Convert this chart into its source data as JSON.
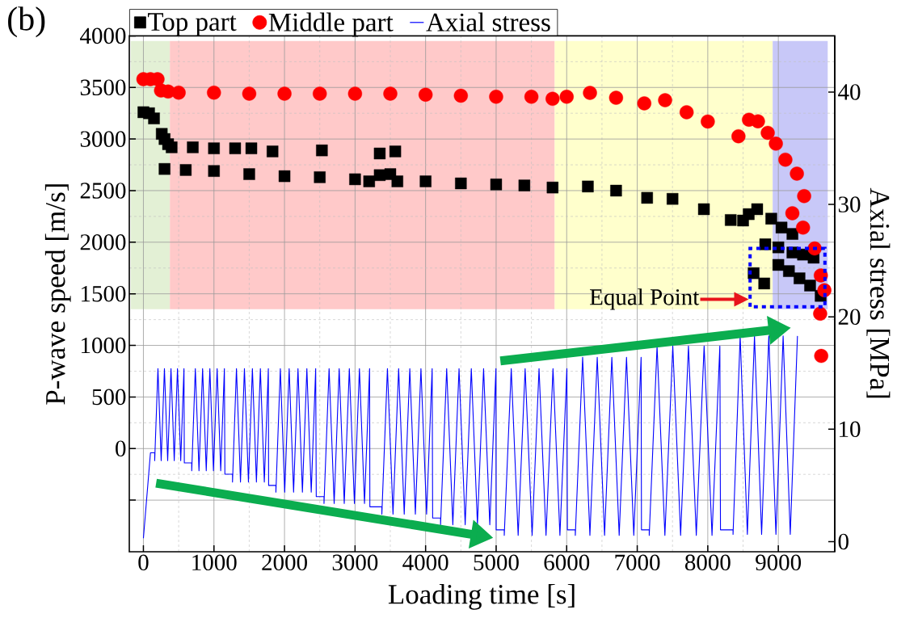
{
  "chart_data": {
    "type": "scatter",
    "xlabel": "Loading time [s]",
    "ylabel": "P-wave speed [m/s]",
    "y2label": "Axial stress [MPa]",
    "xlim": [
      -200,
      9800
    ],
    "xticks": [
      0,
      1000,
      2000,
      3000,
      4000,
      5000,
      6000,
      7000,
      8000,
      9000
    ],
    "ylim": [
      -1000,
      4000
    ],
    "yticks": [
      {
        "value": -500,
        "label": null
      },
      0,
      500,
      1000,
      1500,
      2000,
      2500,
      3000,
      3500,
      4000
    ],
    "y2lim": [
      -0.9,
      45
    ],
    "y2ticks": [
      0,
      10,
      20,
      30,
      40
    ],
    "grid": true,
    "legend": "top",
    "bands": [
      {
        "axis": "x",
        "from": -180,
        "to": 375,
        "color": "#e3f0d5"
      },
      {
        "axis": "x",
        "from": 375,
        "to": 5830,
        "color": "#ffc9c9"
      },
      {
        "axis": "x",
        "from": 5830,
        "to": 8920,
        "color": "#ffffcc"
      },
      {
        "axis": "x",
        "from": 8920,
        "to": 9700,
        "color": "#c8c8f8"
      }
    ],
    "annotations": [
      "(b)",
      "Equal Point"
    ],
    "series": [
      {
        "name": "Top part",
        "marker": "square",
        "color": "#000000",
        "x": [
          0,
          80,
          150,
          260,
          300,
          350,
          400,
          700,
          1000,
          1300,
          1530,
          1830,
          2530,
          3350,
          3570,
          300,
          600,
          1000,
          1500,
          2000,
          2500,
          3000,
          3200,
          3350,
          3500,
          3600,
          4000,
          4500,
          5000,
          5400,
          5800,
          6300,
          6700,
          7140,
          7500,
          7945,
          8325,
          8500,
          8580,
          8700,
          8900,
          9045,
          9200,
          8815,
          9000,
          9200,
          9350,
          9500,
          8650,
          8800,
          9000,
          9150,
          9300,
          9450,
          9600
        ],
        "values": [
          3260,
          3250,
          3200,
          3050,
          3000,
          2950,
          2920,
          2920,
          2910,
          2910,
          2910,
          2880,
          2890,
          2860,
          2880,
          2710,
          2700,
          2690,
          2660,
          2640,
          2630,
          2610,
          2590,
          2650,
          2660,
          2590,
          2590,
          2570,
          2560,
          2550,
          2530,
          2540,
          2500,
          2430,
          2420,
          2320,
          2215,
          2210,
          2272,
          2320,
          2228,
          2142,
          2080,
          1980,
          1950,
          1900,
          1880,
          1850,
          1700,
          1600,
          1780,
          1720,
          1650,
          1580,
          1480
        ]
      },
      {
        "name": "Middle part",
        "marker": "circle",
        "color": "#ff0000",
        "x": [
          0,
          100,
          200,
          250,
          350,
          500,
          1000,
          1500,
          2000,
          2500,
          3000,
          3500,
          4000,
          4500,
          5000,
          5500,
          5800,
          6000,
          6330,
          6700,
          7100,
          7395,
          7700,
          8000,
          8435,
          8584,
          8711,
          8850,
          8965,
          9100,
          9263,
          9366,
          9199,
          9350,
          9515,
          9602,
          9653,
          9593,
          9608
        ],
        "values": [
          3580,
          3580,
          3580,
          3470,
          3460,
          3450,
          3450,
          3440,
          3440,
          3440,
          3440,
          3440,
          3430,
          3420,
          3410,
          3410,
          3390,
          3410,
          3448,
          3400,
          3346,
          3376,
          3260,
          3170,
          3027,
          3187,
          3172,
          3060,
          2955,
          2800,
          2665,
          2447,
          2281,
          2142,
          1939,
          1678,
          1534,
          1307,
          898
        ]
      },
      {
        "name": "Axial stress",
        "type": "line",
        "axis": "y2",
        "color": "#0000ff",
        "x": [
          0,
          100,
          160,
          160,
          206,
          252,
          298,
          344,
          391,
          437,
          483,
          529,
          575,
          580,
          685,
          685,
          736,
          788,
          839,
          891,
          942,
          993,
          1045,
          1096,
          1148,
          1155,
          1263,
          1263,
          1319,
          1376,
          1432,
          1489,
          1545,
          1602,
          1658,
          1714,
          1771,
          1775,
          1878,
          1878,
          1941,
          2003,
          2066,
          2129,
          2191,
          2254,
          2317,
          2379,
          2442,
          2450,
          2560,
          2560,
          2632,
          2704,
          2775,
          2847,
          2919,
          2991,
          3062,
          3134,
          3206,
          3210,
          3380,
          3380,
          3459,
          3538,
          3618,
          3697,
          3776,
          3855,
          3934,
          4014,
          4093,
          4100,
          4212,
          4212,
          4299,
          4386,
          4474,
          4561,
          4648,
          4735,
          4822,
          4910,
          4997,
          5000,
          5115,
          5115,
          5214,
          5312,
          5411,
          5510,
          5608,
          5707,
          5806,
          5904,
          6003,
          6010,
          6122,
          6122,
          6226,
          6329,
          6433,
          6537,
          6640,
          6744,
          6848,
          6951,
          7055,
          7060,
          7170,
          7170,
          7281,
          7392,
          7504,
          7615,
          7726,
          7837,
          7948,
          8060,
          8171,
          8180,
          8358,
          8358,
          8459,
          8561,
          8662,
          8763,
          8865,
          8966,
          9068,
          9169,
          9271
        ],
        "values": [
          0.3,
          7.9,
          7.9,
          7.2,
          15.4,
          7.2,
          15.4,
          7.2,
          15.4,
          7.2,
          15.4,
          7.2,
          15.4,
          7.0,
          7.0,
          6.3,
          15.4,
          6.3,
          15.4,
          6.3,
          15.4,
          6.3,
          15.4,
          6.3,
          15.4,
          6.0,
          6.0,
          5.3,
          15.4,
          5.3,
          15.4,
          5.3,
          15.4,
          5.3,
          15.4,
          5.3,
          15.4,
          5.0,
          5.0,
          4.4,
          15.4,
          4.4,
          15.4,
          4.4,
          15.4,
          4.4,
          15.4,
          4.4,
          15.4,
          4.0,
          4.0,
          3.4,
          15.4,
          3.4,
          15.4,
          3.4,
          15.4,
          3.4,
          15.4,
          3.4,
          15.4,
          3.1,
          3.1,
          2.45,
          15.4,
          2.45,
          15.4,
          2.45,
          15.4,
          2.45,
          15.4,
          2.45,
          15.4,
          2.1,
          2.1,
          1.5,
          15.4,
          1.5,
          15.4,
          1.5,
          15.4,
          1.5,
          15.4,
          1.5,
          15.4,
          1.05,
          1.05,
          0.55,
          15.4,
          0.55,
          15.4,
          0.55,
          15.4,
          0.55,
          15.4,
          0.55,
          15.4,
          1.05,
          1.05,
          0.55,
          16.4,
          0.55,
          16.4,
          0.55,
          16.4,
          0.55,
          16.4,
          0.55,
          16.4,
          1.05,
          1.05,
          0.55,
          17.4,
          0.55,
          17.4,
          0.55,
          17.4,
          0.55,
          17.4,
          0.55,
          17.4,
          1.05,
          1.05,
          0.65,
          18.3,
          0.65,
          18.3,
          0.65,
          18.3,
          0.65,
          18.3,
          0.65,
          18.3
        ]
      }
    ]
  }
}
